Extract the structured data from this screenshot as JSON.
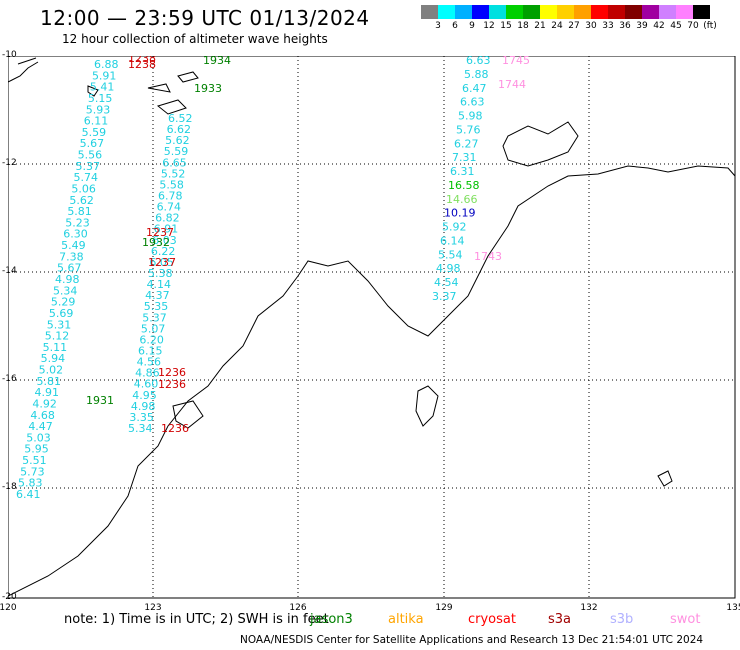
{
  "header": {
    "title": "12:00 — 23:59 UTC 01/13/2024",
    "subtitle": "12 hour collection of altimeter wave heights"
  },
  "colorbar": {
    "unit": "(ft)",
    "labels": [
      "3",
      "6",
      "9",
      "12",
      "15",
      "18",
      "21",
      "24",
      "27",
      "30",
      "33",
      "36",
      "39",
      "42",
      "45",
      "70"
    ],
    "colors": [
      "#808080",
      "#00ffff",
      "#00b0ff",
      "#0000ff",
      "#00e0e0",
      "#00d000",
      "#00a000",
      "#ffff00",
      "#ffd000",
      "#ffa000",
      "#ff0000",
      "#c00000",
      "#800000",
      "#a000a0",
      "#d080ff",
      "#ff80ff",
      "#000000"
    ]
  },
  "axes": {
    "x_ticks": [
      "120",
      "123",
      "126",
      "129",
      "132",
      "135"
    ],
    "y_ticks": [
      "-10",
      "-12",
      "-14",
      "-16",
      "-18",
      "-20"
    ]
  },
  "footer": {
    "note": "note:  1) Time is in UTC; 2) SWH is in feet",
    "credit": "NOAA/NESDIS Center for Satellite Applications and Research    13 Dec 21:54:01 UTC 2024"
  },
  "satellites": [
    {
      "name": "jason3",
      "color": "#008000"
    },
    {
      "name": "altika",
      "color": "#ffa500"
    },
    {
      "name": "cryosat",
      "color": "#ff0000"
    },
    {
      "name": "s3a",
      "color": "#a00000"
    },
    {
      "name": "s3b",
      "color": "#b0b0ff"
    },
    {
      "name": "swot",
      "color": "#ff90e0"
    }
  ],
  "time_labels": [
    {
      "text": "1238",
      "color": "#d00000"
    },
    {
      "text": "1238",
      "color": "#d00000"
    },
    {
      "text": "1934",
      "color": "#008000"
    },
    {
      "text": "1933",
      "color": "#008000"
    },
    {
      "text": "1237",
      "color": "#d00000"
    },
    {
      "text": "1932",
      "color": "#008000"
    },
    {
      "text": "1237",
      "color": "#d00000"
    },
    {
      "text": "1236",
      "color": "#d00000"
    },
    {
      "text": "1236",
      "color": "#d00000"
    },
    {
      "text": "1931",
      "color": "#008000"
    },
    {
      "text": "1236",
      "color": "#d00000"
    },
    {
      "text": "1745",
      "color": "#ff90e0"
    },
    {
      "text": "1744",
      "color": "#ff90e0"
    },
    {
      "text": "1743",
      "color": "#ff90e0"
    }
  ],
  "track_a": [
    "6.88",
    "5.91",
    "5.41",
    "5.15",
    "5.93",
    "6.11",
    "5.59",
    "5.67",
    "5.56",
    "5.37",
    "5.74",
    "5.06",
    "5.62",
    "5.81",
    "5.23",
    "6.30",
    "5.49",
    "7.38",
    "5.67",
    "4.98",
    "5.34",
    "5.29",
    "5.69",
    "5.31",
    "5.12",
    "5.11",
    "5.94",
    "5.02",
    "5.81",
    "4.91",
    "4.92",
    "4.68",
    "4.47",
    "5.03",
    "5.95",
    "5.51",
    "5.73",
    "5.83",
    "6.41"
  ],
  "track_b": [
    "6.52",
    "6.62",
    "5.62",
    "5.59",
    "6.65",
    "5.52",
    "5.58",
    "6.78",
    "6.74",
    "6.82",
    "6.91",
    "6.03",
    "6.22",
    "6.05",
    "5.38",
    "4.14",
    "4.37",
    "5.35",
    "5.37",
    "5.07",
    "6.20",
    "6.15",
    "4.56",
    "4.86",
    "4.60",
    "4.95",
    "4.98",
    "3.35",
    "5.34"
  ],
  "track_c": [
    "6.63",
    "5.88",
    "6.47",
    "6.63",
    "5.98",
    "5.76",
    "6.27",
    "7.31",
    "6.31",
    "16.58",
    "14.66",
    "10.19",
    "5.92",
    "6.14",
    "5.54",
    "4.98",
    "4.54",
    "3.37"
  ]
}
